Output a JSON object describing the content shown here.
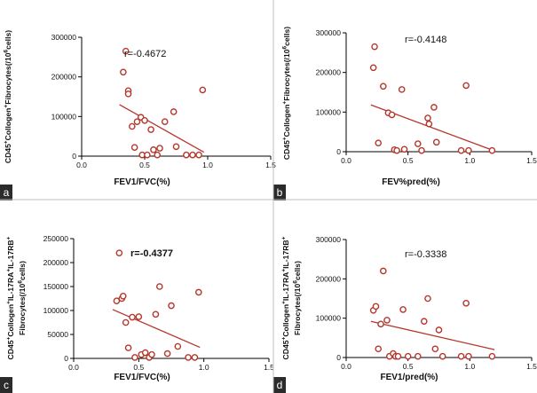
{
  "chart_data": [
    {
      "type": "scatter",
      "panel_label": "a",
      "annotation": "r=-0.4672",
      "annotation_bold": false,
      "ylabel_parts": [
        "CD45",
        "+",
        "Collogen",
        "+",
        "Fibrocytes(/10",
        "6",
        "cells)"
      ],
      "xlabel": "FEV1/FVC(%)",
      "xlim": [
        0,
        1.5
      ],
      "ylim": [
        0,
        300000
      ],
      "xticks": [
        0,
        0.5,
        1,
        1.5
      ],
      "xtick_labels": [
        "0.0",
        "0.5",
        "1.0",
        "1.5"
      ],
      "yticks": [
        0,
        100000,
        200000,
        300000
      ],
      "ytick_labels": [
        "0",
        "100000",
        "200000",
        "300000"
      ],
      "x": [
        0.33,
        0.35,
        0.37,
        0.37,
        0.4,
        0.42,
        0.44,
        0.47,
        0.48,
        0.5,
        0.52,
        0.55,
        0.57,
        0.6,
        0.62,
        0.66,
        0.73,
        0.75,
        0.83,
        0.88,
        0.93,
        0.96
      ],
      "y": [
        212000,
        265000,
        165000,
        157000,
        75000,
        22000,
        87000,
        98000,
        3000,
        90000,
        3000,
        67000,
        16000,
        3000,
        20000,
        87000,
        112000,
        24000,
        3000,
        3000,
        3000,
        167000
      ],
      "trend": {
        "x": [
          0.3,
          0.97
        ],
        "y": [
          130000,
          10000
        ]
      },
      "marker_color": "#b5362b",
      "line_color": "#b5362b"
    },
    {
      "type": "scatter",
      "panel_label": "b",
      "annotation": "r=-0.4148",
      "annotation_bold": false,
      "ylabel_parts": [
        "CD45",
        "+",
        "Collogen",
        "+",
        "Fibrocytes(/10",
        "6",
        "cells)"
      ],
      "xlabel": "FEV%pred(%)",
      "xlim": [
        0,
        1.5
      ],
      "ylim": [
        0,
        300000
      ],
      "xticks": [
        0,
        0.5,
        1,
        1.5
      ],
      "xtick_labels": [
        "0.0",
        "0.5",
        "1.0",
        "1.5"
      ],
      "yticks": [
        0,
        100000,
        200000,
        300000
      ],
      "ytick_labels": [
        "0",
        "100000",
        "200000",
        "300000"
      ],
      "x": [
        0.22,
        0.23,
        0.26,
        0.3,
        0.34,
        0.37,
        0.39,
        0.41,
        0.45,
        0.47,
        0.58,
        0.61,
        0.66,
        0.67,
        0.71,
        0.73,
        0.93,
        0.97,
        0.99,
        1.18
      ],
      "y": [
        212000,
        265000,
        22000,
        165000,
        98000,
        93000,
        5000,
        3000,
        157000,
        6000,
        20000,
        3000,
        85000,
        70000,
        112000,
        24000,
        3000,
        167000,
        3000,
        3000
      ],
      "trend": {
        "x": [
          0.2,
          1.2
        ],
        "y": [
          118000,
          2000
        ]
      },
      "marker_color": "#b5362b",
      "line_color": "#b5362b"
    },
    {
      "type": "scatter",
      "panel_label": "c",
      "annotation": "r=-0.4377",
      "annotation_bold": true,
      "ylabel_line1_parts": [
        "CD45",
        "+",
        "Collogen",
        "+",
        "IL-17RA",
        "+",
        "IL-17RB",
        "+"
      ],
      "ylabel_line2_parts": [
        "Fibrocytes(/10",
        "6",
        "cells)"
      ],
      "xlabel": "FEV1/FVC(%)",
      "xlim": [
        0,
        1.5
      ],
      "ylim": [
        0,
        250000
      ],
      "xticks": [
        0,
        0.5,
        1,
        1.5
      ],
      "xtick_labels": [
        "0.0",
        "0.5",
        "1.0",
        "1.5"
      ],
      "yticks": [
        0,
        50000,
        100000,
        150000,
        200000,
        250000
      ],
      "ytick_labels": [
        "0",
        "50000",
        "100000",
        "150000",
        "200000",
        "250000"
      ],
      "x": [
        0.33,
        0.35,
        0.37,
        0.38,
        0.4,
        0.42,
        0.45,
        0.47,
        0.5,
        0.52,
        0.55,
        0.58,
        0.6,
        0.63,
        0.66,
        0.72,
        0.75,
        0.8,
        0.88,
        0.93,
        0.96
      ],
      "y": [
        120000,
        220000,
        125000,
        130000,
        75000,
        22000,
        86000,
        2000,
        87000,
        8000,
        12000,
        2000,
        8000,
        92000,
        150000,
        10000,
        110000,
        25000,
        2000,
        2000,
        138000
      ],
      "trend": {
        "x": [
          0.3,
          0.97
        ],
        "y": [
          102000,
          23000
        ]
      },
      "marker_color": "#b5362b",
      "line_color": "#b5362b"
    },
    {
      "type": "scatter",
      "panel_label": "d",
      "annotation": "r=-0.3338",
      "annotation_bold": false,
      "ylabel_line1_parts": [
        "CD45",
        "+",
        "Collogen",
        "+",
        "IL-17RA",
        "+",
        "IL-17RB",
        "+"
      ],
      "ylabel_line2_parts": [
        "Fibrocytes(/10",
        "6",
        "cells)"
      ],
      "xlabel": "FEV1/pred(%)",
      "xlim": [
        0,
        1.5
      ],
      "ylim": [
        0,
        300000
      ],
      "xticks": [
        0,
        0.5,
        1,
        1.5
      ],
      "xtick_labels": [
        "0.0",
        "0.5",
        "1.0",
        "1.5"
      ],
      "yticks": [
        0,
        100000,
        200000,
        300000
      ],
      "ytick_labels": [
        "0",
        "100000",
        "200000",
        "300000"
      ],
      "x": [
        0.22,
        0.24,
        0.26,
        0.28,
        0.3,
        0.33,
        0.35,
        0.38,
        0.4,
        0.42,
        0.46,
        0.5,
        0.58,
        0.63,
        0.66,
        0.72,
        0.75,
        0.78,
        0.93,
        0.97,
        0.99,
        1.18
      ],
      "y": [
        120000,
        130000,
        22000,
        85000,
        220000,
        95000,
        3000,
        10000,
        3000,
        3000,
        122000,
        3000,
        3000,
        92000,
        150000,
        22000,
        70000,
        3000,
        3000,
        138000,
        3000,
        3000
      ],
      "trend": {
        "x": [
          0.2,
          1.2
        ],
        "y": [
          92000,
          20000
        ]
      },
      "marker_color": "#b5362b",
      "line_color": "#b5362b"
    }
  ]
}
